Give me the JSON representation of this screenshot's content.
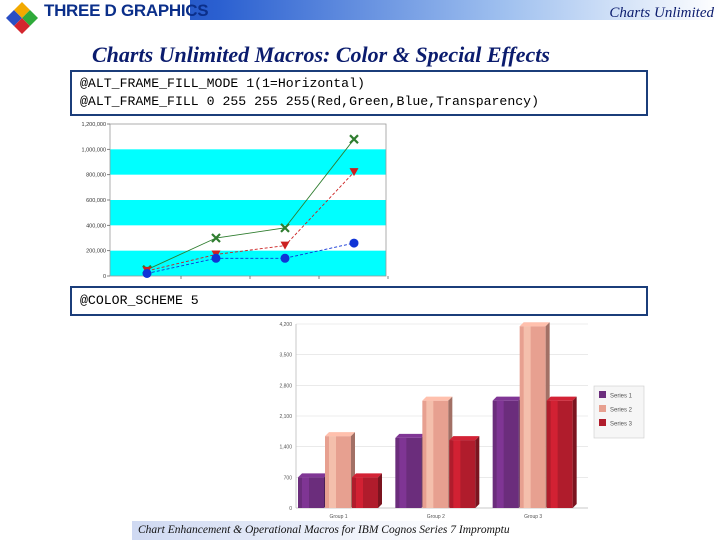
{
  "header": {
    "logo_text": "THREE D GRAPHICS",
    "brand": "Charts Unlimited"
  },
  "title": "Charts Unlimited Macros: Color & Special Effects",
  "code_block_1": {
    "line1": "@ALT_FRAME_FILL_MODE 1(1=Horizontal)",
    "line2": "@ALT_FRAME_FILL 0 255 255 255(Red,Green,Blue,Transparency)"
  },
  "code_block_2": {
    "line1": "@COLOR_SCHEME 5"
  },
  "footer": "Chart Enhancement & Operational Macros for IBM Cognos Series 7 Impromptu",
  "colors": {
    "band_fill": "#00ffff",
    "series_green": "#2f7d2f",
    "series_red": "#cc2020",
    "series_blue": "#1034d6",
    "bar_purple": "#6b2d7c",
    "bar_salmon": "#e7a090",
    "bar_red": "#b01c2c"
  },
  "chart_data": [
    {
      "type": "line",
      "x": [
        1,
        2,
        3,
        4
      ],
      "ylim": [
        0,
        1200000
      ],
      "yticks": [
        "0",
        "200,000",
        "400,000",
        "600,000",
        "800,000",
        "1,000,000",
        "1,200,000"
      ],
      "series": [
        {
          "marker": "x",
          "values": [
            50000,
            300000,
            380000,
            1080000
          ]
        },
        {
          "marker": "triangle",
          "values": [
            40000,
            170000,
            240000,
            820000
          ]
        },
        {
          "marker": "circle",
          "values": [
            20000,
            140000,
            140000,
            260000
          ]
        }
      ]
    },
    {
      "type": "bar",
      "categories": [
        "Group 1",
        "Group 2",
        "Group 3"
      ],
      "ylim": [
        0,
        4200
      ],
      "yticks": [
        "0",
        "700",
        "1,400",
        "2,100",
        "2,800",
        "3,500",
        "4,200"
      ],
      "legend_position": "right",
      "series": [
        {
          "name": "Series 1",
          "values": [
            700,
            1600,
            2450
          ]
        },
        {
          "name": "Series 2",
          "values": [
            1640,
            2450,
            4150
          ]
        },
        {
          "name": "Series 3",
          "values": [
            700,
            1550,
            2450
          ]
        }
      ]
    }
  ]
}
